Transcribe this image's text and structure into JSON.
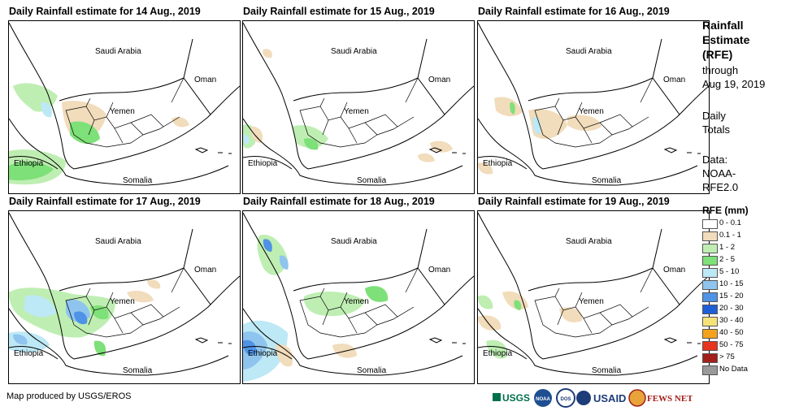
{
  "panels": [
    {
      "title": "Daily Rainfall estimate for 14 Aug., 2019"
    },
    {
      "title": "Daily Rainfall estimate for 15 Aug., 2019"
    },
    {
      "title": "Daily Rainfall estimate for 16 Aug., 2019"
    },
    {
      "title": "Daily Rainfall estimate for 17 Aug., 2019"
    },
    {
      "title": "Daily Rainfall estimate for 18 Aug., 2019"
    },
    {
      "title": "Daily Rainfall estimate for 19 Aug., 2019"
    }
  ],
  "map_labels": {
    "saudi": "Saudi Arabia",
    "oman": "Oman",
    "yemen": "Yemen",
    "ethiopia": "Ethiopia",
    "somalia": "Somalia"
  },
  "sidebar": {
    "heading": [
      "Rainfall",
      "Estimate",
      "(RFE)"
    ],
    "through": "through",
    "date": "Aug 19, 2019",
    "daily": "Daily",
    "totals": "Totals",
    "data_label": "Data:",
    "data_source_1": "NOAA-",
    "data_source_2": "RFE2.0"
  },
  "legend": {
    "title": "RFE (mm)",
    "items": [
      {
        "label": "0 - 0.1",
        "color": "#ffffff"
      },
      {
        "label": "0.1 - 1",
        "color": "#f1dcbb"
      },
      {
        "label": "1 - 2",
        "color": "#bfeeb3"
      },
      {
        "label": "2 - 5",
        "color": "#7ee078"
      },
      {
        "label": "5 - 10",
        "color": "#bde8f5"
      },
      {
        "label": "10 - 15",
        "color": "#8fc4ee"
      },
      {
        "label": "15 - 20",
        "color": "#4f93e6"
      },
      {
        "label": "20 - 30",
        "color": "#1e5fd6"
      },
      {
        "label": "30 - 40",
        "color": "#f7e27a"
      },
      {
        "label": "40 - 50",
        "color": "#f4a21d"
      },
      {
        "label": "50 - 75",
        "color": "#e8351f"
      },
      {
        "label": "> 75",
        "color": "#a3201b"
      },
      {
        "label": "No Data",
        "color": "#999999"
      }
    ]
  },
  "footer": {
    "credit": "Map produced by USGS/EROS"
  },
  "logos": [
    "USGS",
    "NOAA",
    "DOS",
    "USAID",
    "FEWS NET"
  ]
}
